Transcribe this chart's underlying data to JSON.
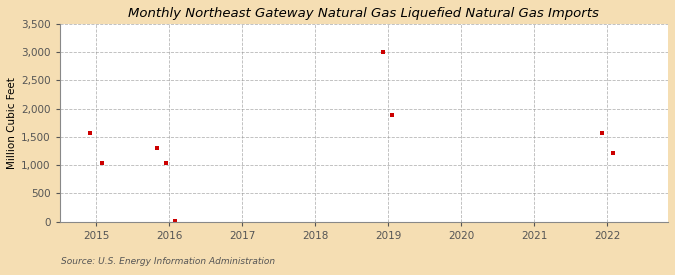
{
  "title": "Monthly Northeast Gateway Natural Gas Liquefied Natural Gas Imports",
  "ylabel": "Million Cubic Feet",
  "source": "Source: U.S. Energy Information Administration",
  "background_color": "#f5deb3",
  "plot_bg_color": "#ffffff",
  "grid_color": "#999999",
  "point_color": "#cc0000",
  "xlim": [
    2014.5,
    2022.83
  ],
  "ylim": [
    0,
    3500
  ],
  "yticks": [
    0,
    500,
    1000,
    1500,
    2000,
    2500,
    3000,
    3500
  ],
  "xticks": [
    2015,
    2016,
    2017,
    2018,
    2019,
    2020,
    2021,
    2022
  ],
  "data_x": [
    2014.92,
    2015.08,
    2015.83,
    2015.95,
    2016.08,
    2018.92,
    2019.05,
    2021.92,
    2022.08
  ],
  "data_y": [
    1560,
    1030,
    1300,
    1030,
    5,
    3010,
    1890,
    1570,
    1220
  ]
}
